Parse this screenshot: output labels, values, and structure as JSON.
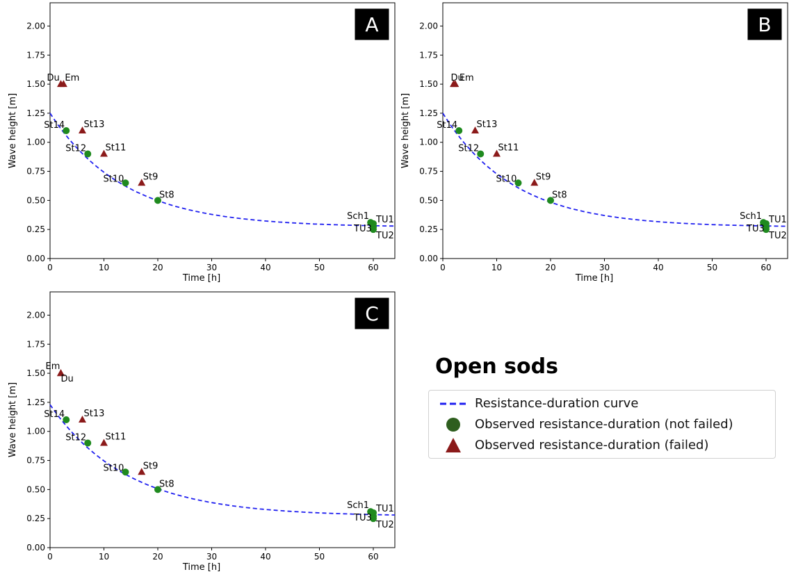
{
  "figure_title": "Open sods",
  "legend": {
    "items": [
      {
        "label": "Resistance-duration curve",
        "symbol": "dashed-line",
        "color": "#1f1ff0"
      },
      {
        "label": "Observed resistance-duration (not failed)",
        "symbol": "circle",
        "color": "#2e5e1e"
      },
      {
        "label": "Observed resistance-duration (failed)",
        "symbol": "triangle",
        "color": "#8b1a1a"
      }
    ]
  },
  "chart_data": [
    {
      "panel_label": "A",
      "type": "scatter",
      "xlabel": "Time [h]",
      "ylabel": "Wave height [m]",
      "xlim": [
        0,
        64
      ],
      "ylim": [
        0,
        2.2
      ],
      "x_ticks": [
        "0",
        "10",
        "20",
        "30",
        "40",
        "50",
        "60"
      ],
      "y_ticks": [
        "0.00",
        "0.25",
        "0.50",
        "0.75",
        "1.00",
        "1.25",
        "1.50",
        "1.75",
        "2.00"
      ],
      "curve": {
        "a": 0.27,
        "b": 0.98,
        "k": 0.073
      },
      "not_failed": [
        {
          "label": "St14",
          "x": 3,
          "y": 1.1
        },
        {
          "label": "St12",
          "x": 7,
          "y": 0.9
        },
        {
          "label": "St10",
          "x": 14,
          "y": 0.65
        },
        {
          "label": "St8",
          "x": 20,
          "y": 0.5
        },
        {
          "label": "Sch1",
          "x": 59.5,
          "y": 0.31
        },
        {
          "label": "TU1",
          "x": 60,
          "y": 0.3
        },
        {
          "label": "TU3",
          "x": 60,
          "y": 0.27
        },
        {
          "label": "TU2",
          "x": 60,
          "y": 0.25
        }
      ],
      "failed": [
        {
          "label": "Du",
          "x": 2,
          "y": 1.5
        },
        {
          "label": "Em",
          "x": 2.5,
          "y": 1.5
        },
        {
          "label": "St13",
          "x": 6,
          "y": 1.1
        },
        {
          "label": "St11",
          "x": 10,
          "y": 0.9
        },
        {
          "label": "St9",
          "x": 17,
          "y": 0.65
        }
      ]
    },
    {
      "panel_label": "B",
      "type": "scatter",
      "xlabel": "Time [h]",
      "ylabel": "Wave height [m]",
      "xlim": [
        0,
        64
      ],
      "ylim": [
        0,
        2.2
      ],
      "x_ticks": [
        "0",
        "10",
        "20",
        "30",
        "40",
        "50",
        "60"
      ],
      "y_ticks": [
        "0.00",
        "0.25",
        "0.50",
        "0.75",
        "1.00",
        "1.25",
        "1.50",
        "1.75",
        "2.00"
      ],
      "curve": {
        "a": 0.27,
        "b": 0.98,
        "k": 0.076
      },
      "not_failed": [
        {
          "label": "St14",
          "x": 3,
          "y": 1.1
        },
        {
          "label": "St12",
          "x": 7,
          "y": 0.9
        },
        {
          "label": "St10",
          "x": 14,
          "y": 0.65
        },
        {
          "label": "St8",
          "x": 20,
          "y": 0.5
        },
        {
          "label": "Sch1",
          "x": 59.5,
          "y": 0.31
        },
        {
          "label": "TU1",
          "x": 60,
          "y": 0.3
        },
        {
          "label": "TU3",
          "x": 60,
          "y": 0.27
        },
        {
          "label": "TU2",
          "x": 60,
          "y": 0.25
        }
      ],
      "failed": [
        {
          "label": "Du",
          "x": 2,
          "y": 1.5
        },
        {
          "label": "Em",
          "x": 2.3,
          "y": 1.5
        },
        {
          "label": "St13",
          "x": 6,
          "y": 1.1
        },
        {
          "label": "St11",
          "x": 10,
          "y": 0.9
        },
        {
          "label": "St9",
          "x": 17,
          "y": 0.65
        }
      ]
    },
    {
      "panel_label": "C",
      "type": "scatter",
      "xlabel": "Time [h]",
      "ylabel": "Wave height [m]",
      "xlim": [
        0,
        64
      ],
      "ylim": [
        0,
        2.2
      ],
      "x_ticks": [
        "0",
        "10",
        "20",
        "30",
        "40",
        "50",
        "60"
      ],
      "y_ticks": [
        "0.00",
        "0.25",
        "0.50",
        "0.75",
        "1.00",
        "1.25",
        "1.50",
        "1.75",
        "2.00"
      ],
      "curve": {
        "a": 0.27,
        "b": 0.96,
        "k": 0.07
      },
      "not_failed": [
        {
          "label": "St14",
          "x": 3,
          "y": 1.1
        },
        {
          "label": "St12",
          "x": 7,
          "y": 0.9
        },
        {
          "label": "St10",
          "x": 14,
          "y": 0.65
        },
        {
          "label": "St8",
          "x": 20,
          "y": 0.5
        },
        {
          "label": "Sch1",
          "x": 59.5,
          "y": 0.31
        },
        {
          "label": "TU1",
          "x": 60,
          "y": 0.3
        },
        {
          "label": "TU3",
          "x": 60,
          "y": 0.27
        },
        {
          "label": "TU2",
          "x": 60,
          "y": 0.25
        }
      ],
      "failed": [
        {
          "label": "Em",
          "x": 2,
          "y": 1.5
        },
        {
          "label": "Du",
          "x": 2,
          "y": 1.5
        },
        {
          "label": "St13",
          "x": 6,
          "y": 1.1
        },
        {
          "label": "St11",
          "x": 10,
          "y": 0.9
        },
        {
          "label": "St9",
          "x": 17,
          "y": 0.65
        }
      ]
    }
  ]
}
